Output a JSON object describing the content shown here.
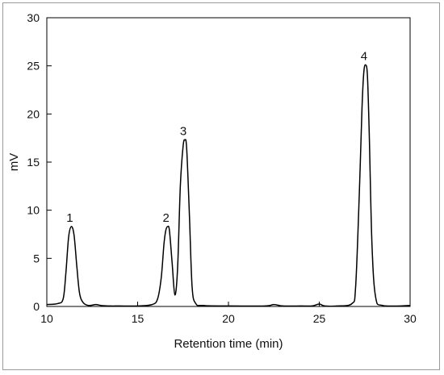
{
  "chart_data": {
    "type": "line",
    "title": "",
    "xlabel": "Retention time (min)",
    "ylabel": "mV",
    "xlim": [
      10,
      30
    ],
    "ylim": [
      0,
      30
    ],
    "x_ticks": [
      "10",
      "15",
      "20",
      "25",
      "30"
    ],
    "y_ticks": [
      "0",
      "5",
      "10",
      "15",
      "20",
      "25",
      "30"
    ],
    "grid": false,
    "legend": "none",
    "line_color": "#000000",
    "baseline": 0.1,
    "peaks": [
      {
        "label": "1",
        "retention_time": 11.35,
        "height_mV": 8.3
      },
      {
        "label": "2",
        "retention_time": 16.65,
        "height_mV": 8.3
      },
      {
        "label": "3",
        "retention_time": 17.6,
        "height_mV": 17.3
      },
      {
        "label": "4",
        "retention_time": 27.55,
        "height_mV": 25.1
      }
    ],
    "series": [
      {
        "x": [
          10,
          10.6,
          10.9,
          11.05,
          11.2,
          11.35,
          11.5,
          11.65,
          11.8,
          12.0,
          12.3,
          12.7,
          13.0,
          13.5,
          14.0,
          15.0,
          15.8,
          16.1,
          16.3,
          16.45,
          16.55,
          16.65,
          16.75,
          16.9,
          17.05,
          17.2,
          17.35,
          17.5,
          17.6,
          17.7,
          17.85,
          18.0,
          18.2,
          18.6,
          20.0,
          22.0,
          22.5,
          23.0,
          24.0,
          24.6,
          25.0,
          25.3,
          26.0,
          26.8,
          27.0,
          27.2,
          27.35,
          27.45,
          27.55,
          27.65,
          27.75,
          27.9,
          28.1,
          28.5,
          30.0
        ],
        "y": [
          0.2,
          0.3,
          0.8,
          3.5,
          7.2,
          8.3,
          7.4,
          4.2,
          1.4,
          0.4,
          0.1,
          0.2,
          0.1,
          0.05,
          0.05,
          0.05,
          0.2,
          0.8,
          3.0,
          6.5,
          7.9,
          8.3,
          7.9,
          4.5,
          1.2,
          4.0,
          12.5,
          16.6,
          17.3,
          16.4,
          9.5,
          2.0,
          0.3,
          0.1,
          0.05,
          0.05,
          0.2,
          0.05,
          0.05,
          0.05,
          0.25,
          0.05,
          0.05,
          0.3,
          2.0,
          11.5,
          20.5,
          24.3,
          25.1,
          24.0,
          18.0,
          6.5,
          1.0,
          0.1,
          0.1
        ]
      }
    ]
  }
}
